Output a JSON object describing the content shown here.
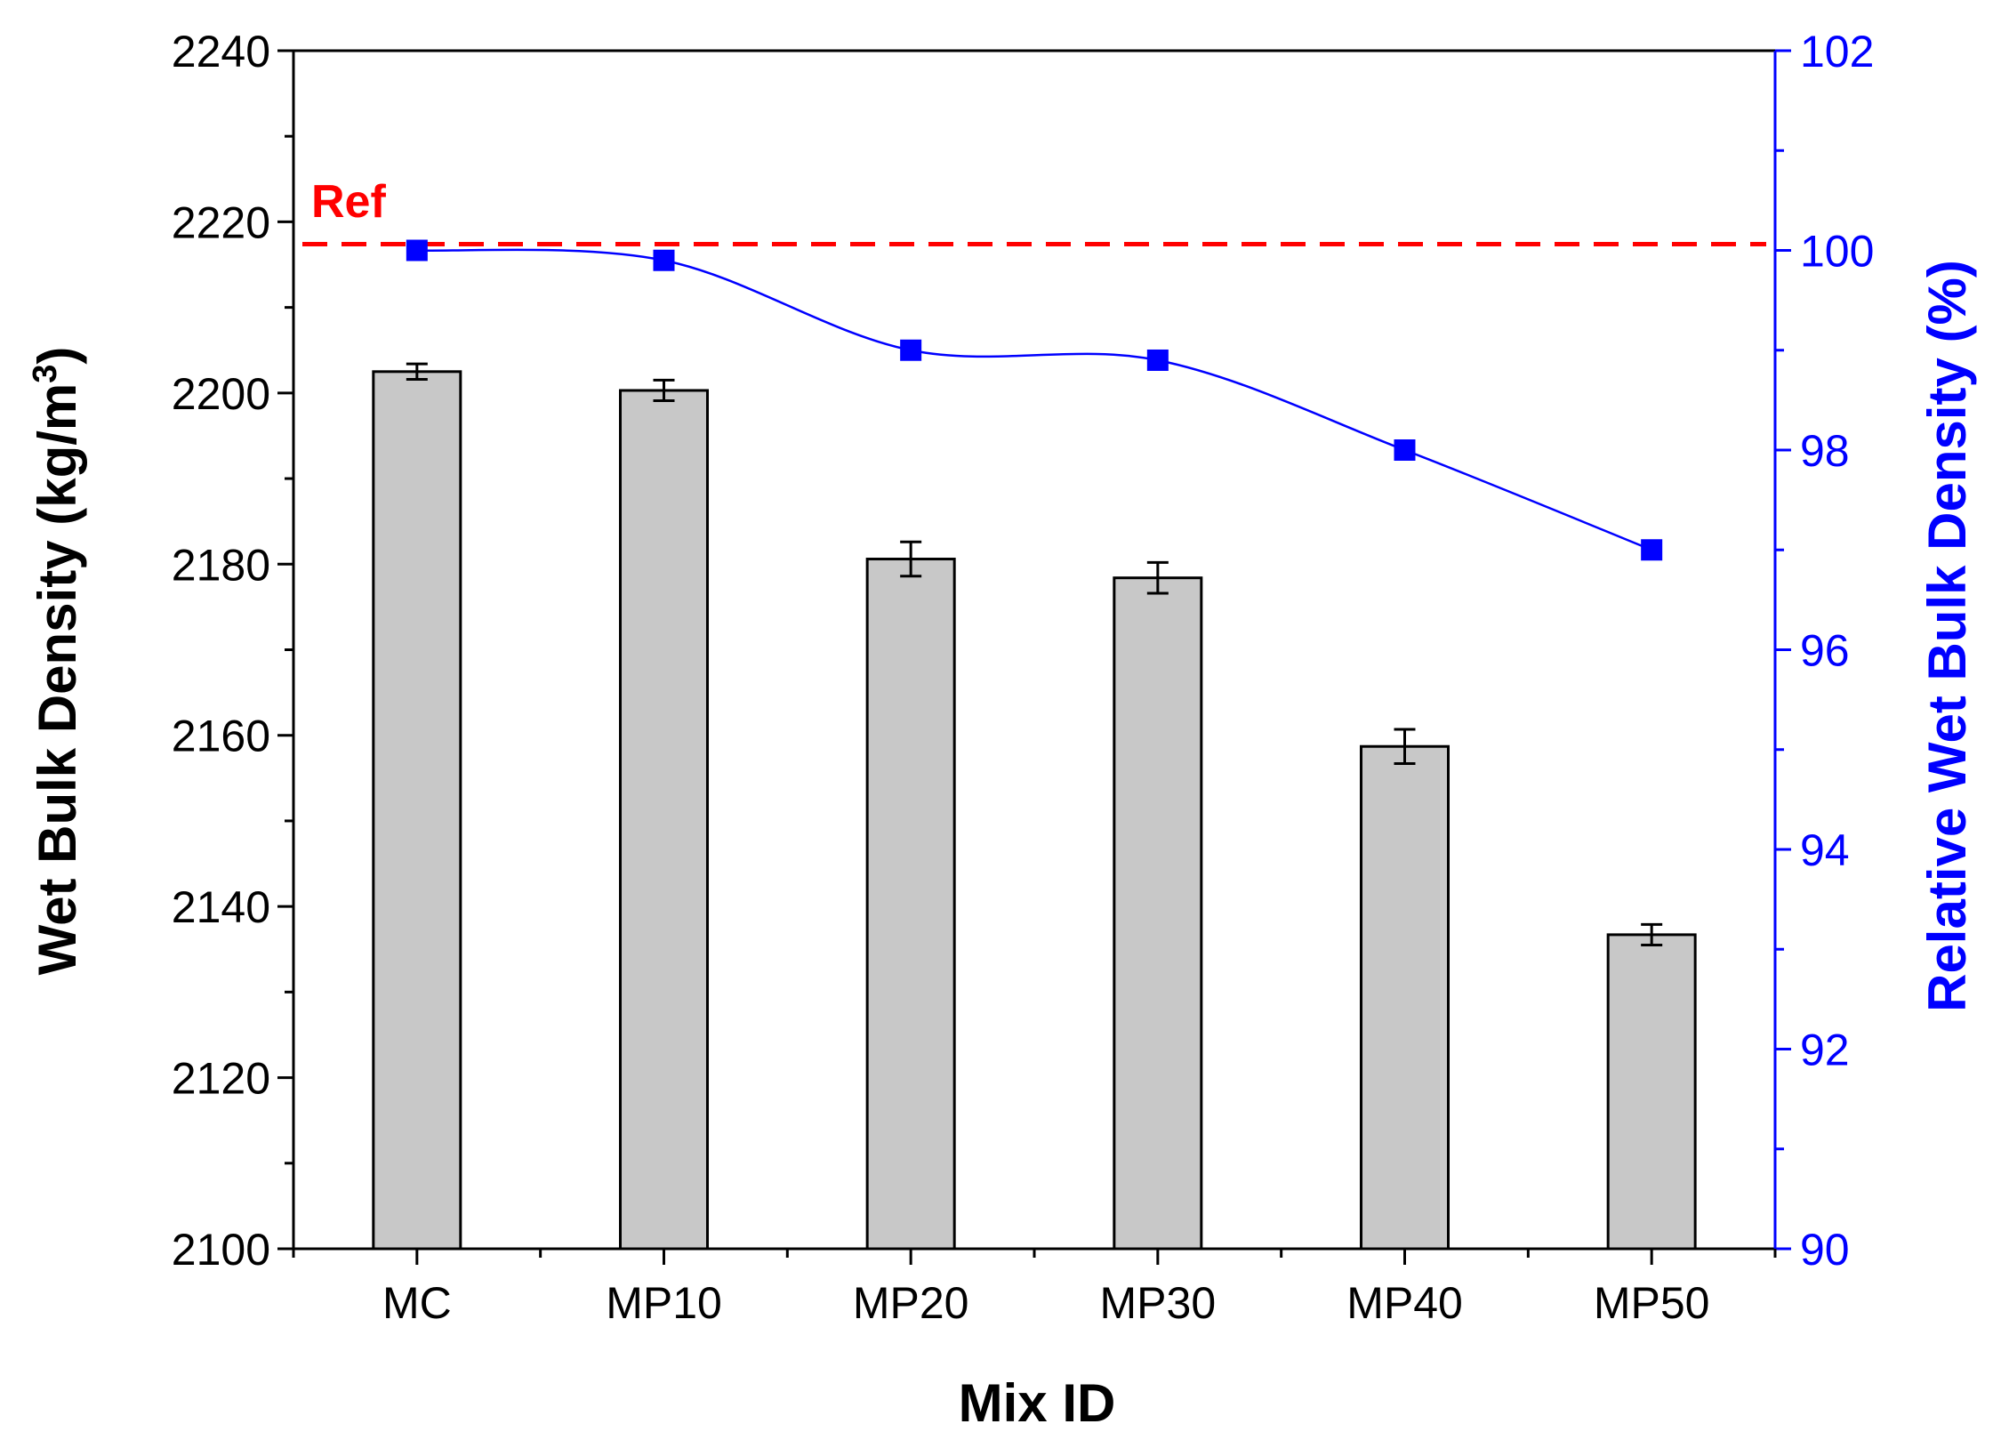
{
  "chart_data": {
    "type": "bar",
    "title": "",
    "xlabel": "Mix ID",
    "ylabel": "Wet Bulk Density (kg/m",
    "ylabel_superscript": "3",
    "ylabel_close": ")",
    "y2label": "Relative Wet Bulk Density (%)",
    "categories": [
      "MC",
      "MP10",
      "MP20",
      "MP30",
      "MP40",
      "MP50"
    ],
    "ylim": [
      2100,
      2240
    ],
    "y_ticks": [
      2100,
      2120,
      2140,
      2160,
      2180,
      2200,
      2220,
      2240
    ],
    "y_tick_labels": [
      "2100",
      "2120",
      "2140",
      "2160",
      "2180",
      "2200",
      "2220",
      "2240"
    ],
    "y2lim": [
      90,
      102
    ],
    "y2_ticks": [
      90,
      92,
      94,
      96,
      98,
      100,
      102
    ],
    "y2_tick_labels": [
      "90",
      "92",
      "94",
      "96",
      "98",
      "100",
      "102"
    ],
    "grid": false,
    "series": [
      {
        "name": "Wet Bulk Density",
        "type": "bar",
        "axis": "left",
        "values": [
          2202.5,
          2200.3,
          2180.6,
          2178.4,
          2158.7,
          2136.7
        ],
        "errors": [
          0.9,
          1.2,
          2.0,
          1.8,
          2.0,
          1.2
        ],
        "color": "#c8c8c8"
      },
      {
        "name": "Relative Wet Bulk Density",
        "type": "line",
        "axis": "right",
        "values": [
          100.0,
          99.9,
          99.0,
          98.9,
          98.0,
          97.0
        ],
        "color": "#0000ff"
      }
    ],
    "reference": {
      "label": "Ref",
      "value": 2217.4,
      "color": "#ff0000"
    }
  }
}
